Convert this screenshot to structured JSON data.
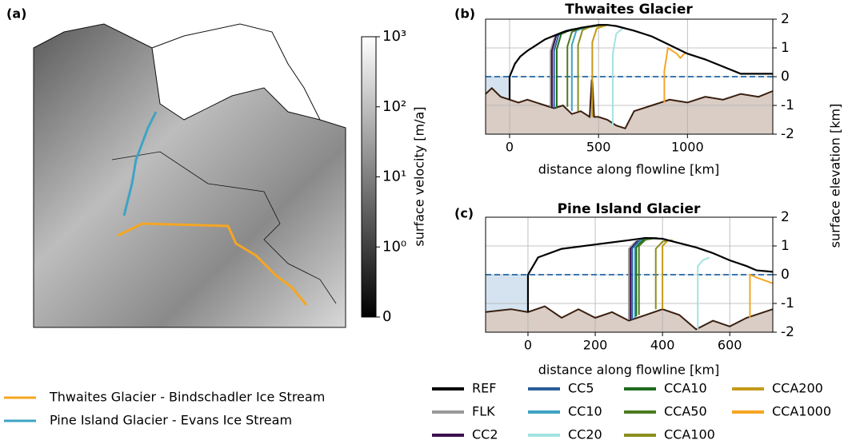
{
  "chart_data": [
    {
      "type": "map",
      "panel_label": "(a)",
      "flowlines": [
        {
          "name": "Thwaites Glacier - Bindschadler Ice Stream",
          "color": "#f5a623"
        },
        {
          "name": "Pine Island Glacier - Evans Ice Stream",
          "color": "#3ea3c4"
        }
      ],
      "colorbar": {
        "label": "surface velocity [m/a]",
        "scale": "symlog",
        "clim": [
          0,
          1000
        ],
        "ticks": [
          {
            "value": 1000,
            "label": "10³"
          },
          {
            "value": 100,
            "label": "10²"
          },
          {
            "value": 10,
            "label": "10¹"
          },
          {
            "value": 1,
            "label": "10⁰"
          },
          0
        ]
      }
    },
    {
      "type": "line",
      "panel_label": "(b)",
      "title": "Thwaites Glacier",
      "xlabel": "distance along flowline [km]",
      "ylabel": "surface elevation [km]",
      "xlim": [
        -135,
        1480
      ],
      "ylim": [
        -2,
        2
      ],
      "xticks": [
        0,
        500,
        1000
      ],
      "yticks": [
        -2,
        -1,
        0,
        1,
        2
      ],
      "grid": true,
      "sea_level": 0,
      "bed": {
        "color": "#3a1f0f",
        "fill": "#d9cdc5",
        "ocean": "#d4e3ef",
        "x": [
          -135,
          -100,
          -50,
          0,
          50,
          100,
          150,
          200,
          250,
          300,
          350,
          400,
          450,
          462,
          466,
          475,
          500,
          550,
          600,
          650,
          700,
          800,
          900,
          1000,
          1100,
          1200,
          1300,
          1400,
          1480
        ],
        "values": [
          -0.6,
          -0.4,
          -0.7,
          -0.8,
          -0.9,
          -0.8,
          -0.9,
          -1.0,
          -1.1,
          -1.0,
          -1.3,
          -1.2,
          -1.4,
          -0.1,
          -0.2,
          -1.4,
          -1.4,
          -1.5,
          -1.7,
          -1.8,
          -1.2,
          -1.0,
          -0.8,
          -0.9,
          -0.7,
          -0.8,
          -0.6,
          -0.7,
          -0.5
        ]
      },
      "series": [
        {
          "name": "REF",
          "color": "#000000",
          "x": [
            0,
            0,
            30,
            60,
            100,
            150,
            200,
            300,
            400,
            500,
            550,
            600,
            700,
            800,
            900,
            1000,
            1100,
            1200,
            1300,
            1480
          ],
          "values": [
            -0.8,
            0,
            0.45,
            0.7,
            0.9,
            1.1,
            1.3,
            1.55,
            1.7,
            1.8,
            1.8,
            1.76,
            1.6,
            1.4,
            1.1,
            0.8,
            0.6,
            0.35,
            0.1,
            0.1
          ]
        },
        {
          "name": "FLK",
          "color": "#999999",
          "x": [
            230,
            230,
            255,
            310,
            520
          ],
          "values": [
            -1.05,
            0.9,
            1.4,
            1.58,
            1.8
          ]
        },
        {
          "name": "CC2",
          "color": "#3b0f4f",
          "x": [
            238,
            238,
            262,
            318,
            522
          ],
          "values": [
            -1.08,
            0.9,
            1.42,
            1.6,
            1.8
          ]
        },
        {
          "name": "CC5",
          "color": "#2a5d9a",
          "x": [
            250,
            250,
            275,
            330,
            525
          ],
          "values": [
            -1.1,
            0.9,
            1.45,
            1.62,
            1.8
          ]
        },
        {
          "name": "CC10",
          "color": "#3ea3c4",
          "x": [
            350,
            350,
            375,
            430,
            540
          ],
          "values": [
            -1.2,
            1.1,
            1.6,
            1.72,
            1.8
          ]
        },
        {
          "name": "CC20",
          "color": "#a3e3e0",
          "x": [
            580,
            580,
            600,
            640
          ],
          "values": [
            -1.7,
            0.8,
            1.5,
            1.7
          ]
        },
        {
          "name": "CCA10",
          "color": "#1e6b1e",
          "x": [
            265,
            265,
            290,
            345,
            525
          ],
          "values": [
            -1.1,
            0.95,
            1.48,
            1.64,
            1.8
          ]
        },
        {
          "name": "CCA50",
          "color": "#4b7a1e",
          "x": [
            325,
            325,
            350,
            400,
            535
          ],
          "values": [
            -1.05,
            1.05,
            1.55,
            1.7,
            1.8
          ]
        },
        {
          "name": "CCA100",
          "color": "#8a8f1e",
          "x": [
            385,
            385,
            410,
            460,
            545
          ],
          "values": [
            -1.2,
            1.1,
            1.62,
            1.75,
            1.8
          ]
        },
        {
          "name": "CCA200",
          "color": "#c49a1a",
          "x": [
            465,
            465,
            490,
            540,
            560
          ],
          "values": [
            -1.4,
            1.2,
            1.68,
            1.78,
            1.8
          ]
        },
        {
          "name": "CCA1000",
          "color": "#f5a623",
          "x": [
            870,
            870,
            890,
            940,
            960,
            990
          ],
          "values": [
            -0.9,
            0.2,
            1.0,
            0.8,
            0.65,
            0.85
          ]
        }
      ]
    },
    {
      "type": "line",
      "panel_label": "(c)",
      "title": "Pine Island Glacier",
      "xlabel": "distance along flowline [km]",
      "xlim": [
        -126,
        728
      ],
      "ylim": [
        -2,
        2
      ],
      "xticks": [
        0,
        200,
        400,
        600
      ],
      "yticks": [
        -2,
        -1,
        0,
        1,
        2
      ],
      "grid": true,
      "sea_level": 0,
      "bed": {
        "color": "#3a1f0f",
        "fill": "#d9cdc5",
        "ocean": "#d4e3ef",
        "x": [
          -126,
          -50,
          0,
          50,
          100,
          150,
          200,
          250,
          300,
          350,
          400,
          450,
          500,
          550,
          600,
          650,
          728
        ],
        "values": [
          -1.3,
          -1.2,
          -1.3,
          -1.1,
          -1.5,
          -1.2,
          -1.5,
          -1.3,
          -1.6,
          -1.4,
          -1.2,
          -1.4,
          -1.9,
          -1.6,
          -1.8,
          -1.5,
          -1.2
        ]
      },
      "series": [
        {
          "color": "#000000",
          "x": [
            0,
            0,
            30,
            100,
            200,
            300,
            350,
            400,
            450,
            500,
            550,
            600,
            650,
            680,
            728
          ],
          "values": [
            -1.3,
            0,
            0.6,
            0.9,
            1.05,
            1.2,
            1.28,
            1.25,
            1.1,
            0.95,
            0.75,
            0.5,
            0.3,
            0.15,
            0.1
          ]
        },
        {
          "color": "#999999",
          "x": [
            300,
            300,
            320,
            360,
            370
          ],
          "values": [
            -1.55,
            0.9,
            1.15,
            1.27,
            1.28
          ]
        },
        {
          "color": "#3b0f4f",
          "x": [
            305,
            305,
            325,
            362,
            372
          ],
          "values": [
            -1.56,
            0.9,
            1.16,
            1.27,
            1.28
          ]
        },
        {
          "color": "#2a5d9a",
          "x": [
            310,
            310,
            330,
            365,
            374
          ],
          "values": [
            -1.57,
            0.92,
            1.18,
            1.27,
            1.28
          ]
        },
        {
          "color": "#3ea3c4",
          "x": [
            318,
            318,
            338,
            370,
            378
          ],
          "values": [
            -1.5,
            0.95,
            1.2,
            1.27,
            1.28
          ]
        },
        {
          "color": "#a3e3e0",
          "x": [
            505,
            505,
            520,
            540
          ],
          "values": [
            -1.9,
            0.3,
            0.5,
            0.6
          ]
        },
        {
          "color": "#1e6b1e",
          "x": [
            322,
            322,
            342,
            372,
            380
          ],
          "values": [
            -1.45,
            0.95,
            1.2,
            1.27,
            1.28
          ]
        },
        {
          "color": "#4b7a1e",
          "x": [
            330,
            330,
            350,
            378,
            385
          ],
          "values": [
            -1.4,
            1.0,
            1.22,
            1.27,
            1.28
          ]
        },
        {
          "color": "#8a8f1e",
          "x": [
            380,
            380,
            400,
            420
          ],
          "values": [
            -1.2,
            0.9,
            1.15,
            1.2
          ]
        },
        {
          "color": "#c49a1a",
          "x": [
            400,
            400,
            415,
            430
          ],
          "values": [
            -1.2,
            1.0,
            1.18,
            1.2
          ]
        },
        {
          "color": "#f5a623",
          "x": [
            660,
            660,
            680,
            728
          ],
          "values": [
            -1.5,
            0,
            -0.1,
            -0.3
          ]
        }
      ]
    }
  ]
}
